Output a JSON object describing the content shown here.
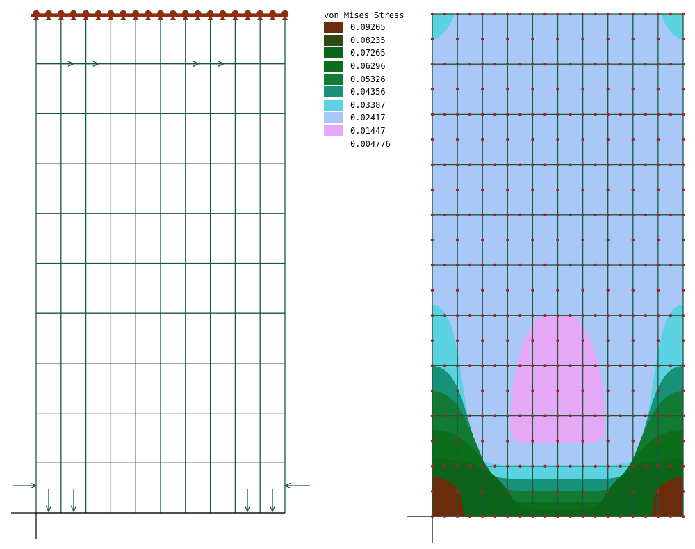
{
  "legend": {
    "title": "von Mises Stress",
    "entries": [
      {
        "value": "0.09205",
        "color": "#6b2c0b"
      },
      {
        "value": "0.08235",
        "color": "#2e4a14"
      },
      {
        "value": "0.07265",
        "color": "#0b6418"
      },
      {
        "value": "0.06296",
        "color": "#0b6e1a"
      },
      {
        "value": "0.05326",
        "color": "#137a33"
      },
      {
        "value": "0.04356",
        "color": "#169278"
      },
      {
        "value": "0.03387",
        "color": "#5ad2e2"
      },
      {
        "value": "0.02417",
        "color": "#a9c8f8"
      },
      {
        "value": "0.01447",
        "color": "#e4a8f7"
      },
      {
        "value": "0.004776",
        "color": "#ffffff"
      }
    ]
  },
  "colors": {
    "mesh": "#17593a",
    "node": "#a52222",
    "support": "#8f2d12",
    "axis": "#000000"
  },
  "mesh": {
    "columns": 10,
    "rows": 10
  }
}
